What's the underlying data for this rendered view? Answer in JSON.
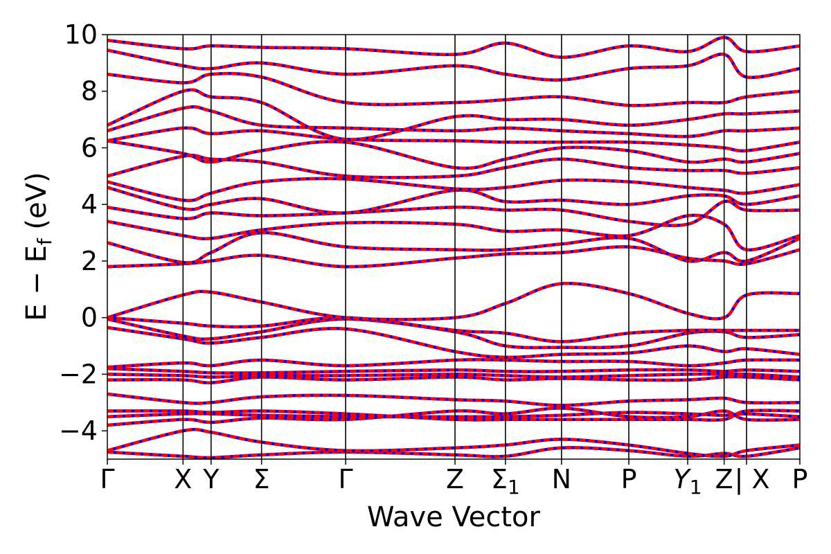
{
  "chart_data": {
    "type": "line",
    "title": "",
    "xlabel": "Wave Vector",
    "ylabel": "E − E",
    "ylabel_sub": "f",
    "ylabel_unit": " (eV)",
    "ylim": [
      -5,
      10
    ],
    "yticks": [
      "−4",
      "−2",
      "0",
      "2",
      "4",
      "6",
      "8",
      "10"
    ],
    "ytick_values": [
      -4,
      -2,
      0,
      2,
      4,
      6,
      8,
      10
    ],
    "xlim": [
      0,
      12.35
    ],
    "kpoints": [
      {
        "label": "Γ",
        "sub": "",
        "x": 0.0
      },
      {
        "label": "X",
        "sub": "",
        "x": 1.35
      },
      {
        "label": "Y",
        "sub": "",
        "x": 1.85
      },
      {
        "label": "Σ",
        "sub": "",
        "x": 2.75
      },
      {
        "label": "Γ",
        "sub": "",
        "x": 4.25
      },
      {
        "label": "Z",
        "sub": "",
        "x": 6.2
      },
      {
        "label": "Σ",
        "sub": "1",
        "x": 7.1
      },
      {
        "label": "N",
        "sub": "",
        "x": 8.1
      },
      {
        "label": "P",
        "sub": "",
        "x": 9.3
      },
      {
        "label": "Y",
        "sub": "1",
        "x": 10.35
      },
      {
        "label": "Z",
        "sub": "",
        "x": 11.0
      },
      {
        "label": "| X",
        "sub": "",
        "x": 11.4
      },
      {
        "label": "P",
        "sub": "",
        "x": 12.35
      }
    ],
    "colors": {
      "series_a": "#0000ff",
      "series_b": "#ff0000"
    },
    "bands": [
      {
        "e": [
          -4.75,
          -4.9,
          -4.95,
          -4.85,
          -4.75,
          -4.85,
          -4.9,
          -4.6,
          -4.7,
          -4.9,
          -4.8,
          -4.9,
          -4.6
        ]
      },
      {
        "e": [
          -4.7,
          -4.0,
          -4.05,
          -4.4,
          -4.7,
          -4.6,
          -4.5,
          -4.3,
          -4.5,
          -4.8,
          -4.9,
          -4.7,
          -4.5
        ]
      },
      {
        "e": [
          -3.8,
          -3.6,
          -3.7,
          -3.55,
          -3.6,
          -3.3,
          -3.4,
          -3.2,
          -3.5,
          -3.5,
          -3.3,
          -3.6,
          -3.6
        ]
      },
      {
        "e": [
          -3.5,
          -3.4,
          -3.4,
          -3.45,
          -3.5,
          -3.5,
          -3.5,
          -3.45,
          -3.35,
          -3.4,
          -3.45,
          -3.4,
          -3.5
        ]
      },
      {
        "e": [
          -3.3,
          -3.3,
          -3.35,
          -3.3,
          -3.4,
          -3.6,
          -3.6,
          -3.6,
          -3.6,
          -3.6,
          -3.6,
          -3.3,
          -3.3
        ]
      },
      {
        "e": [
          -2.7,
          -3.0,
          -3.0,
          -2.8,
          -2.75,
          -2.9,
          -2.95,
          -3.1,
          -2.95,
          -2.9,
          -2.85,
          -3.0,
          -3.0
        ]
      },
      {
        "e": [
          -2.2,
          -2.2,
          -2.3,
          -2.1,
          -2.2,
          -2.1,
          -2.2,
          -2.15,
          -2.2,
          -2.2,
          -2.1,
          -2.1,
          -2.2
        ]
      },
      {
        "e": [
          -2.0,
          -2.05,
          -2.1,
          -2.05,
          -2.05,
          -2.0,
          -2.05,
          -2.1,
          -2.05,
          -2.0,
          -2.0,
          -2.0,
          -2.1
        ]
      },
      {
        "e": [
          -1.8,
          -1.9,
          -1.95,
          -1.95,
          -1.9,
          -1.85,
          -1.9,
          -1.9,
          -1.85,
          -1.85,
          -1.9,
          -1.85,
          -1.9
        ]
      },
      {
        "e": [
          -1.75,
          -1.6,
          -1.7,
          -1.5,
          -1.7,
          -1.5,
          -1.5,
          -1.55,
          -1.55,
          -1.7,
          -1.6,
          -1.5,
          -1.5
        ]
      },
      {
        "e": [
          -0.35,
          -0.75,
          -0.9,
          -0.7,
          -0.4,
          -1.2,
          -1.4,
          -1.3,
          -1.25,
          -1.0,
          -1.2,
          -1.1,
          -1.3
        ]
      },
      {
        "e": [
          -0.05,
          -0.65,
          -0.75,
          -0.5,
          -0.05,
          -0.5,
          -1.0,
          -1.05,
          -1.0,
          -0.55,
          -0.5,
          -0.7,
          -0.6
        ]
      },
      {
        "e": [
          0.0,
          -0.2,
          -0.3,
          -0.3,
          0.0,
          -0.45,
          -0.55,
          -0.85,
          -0.55,
          -0.45,
          -0.45,
          -0.45,
          -0.45
        ]
      },
      {
        "e": [
          0.0,
          0.8,
          0.9,
          0.55,
          0.0,
          0.0,
          0.5,
          1.2,
          0.85,
          0.15,
          0.0,
          0.8,
          0.85
        ]
      },
      {
        "e": [
          1.8,
          1.9,
          2.0,
          2.2,
          1.8,
          2.1,
          2.25,
          2.3,
          2.5,
          2.1,
          2.0,
          1.9,
          2.4
        ]
      },
      {
        "e": [
          2.65,
          1.95,
          2.3,
          3.0,
          2.5,
          2.4,
          2.4,
          2.6,
          2.8,
          2.0,
          2.3,
          2.0,
          2.8
        ]
      },
      {
        "e": [
          3.4,
          2.9,
          2.8,
          3.1,
          3.35,
          3.3,
          3.05,
          3.1,
          2.9,
          3.6,
          3.3,
          2.4,
          2.9
        ]
      },
      {
        "e": [
          3.9,
          3.5,
          3.7,
          3.6,
          3.7,
          3.9,
          3.8,
          3.8,
          3.4,
          3.3,
          4.1,
          3.8,
          3.8
        ]
      },
      {
        "e": [
          4.6,
          3.85,
          4.0,
          4.2,
          3.7,
          4.5,
          4.1,
          4.15,
          4.0,
          4.3,
          4.3,
          4.0,
          4.3
        ]
      },
      {
        "e": [
          4.8,
          4.15,
          4.4,
          4.8,
          4.9,
          4.55,
          4.6,
          4.85,
          4.8,
          4.6,
          4.5,
          4.4,
          4.7
        ]
      },
      {
        "e": [
          5.0,
          5.7,
          5.6,
          5.5,
          5.0,
          5.0,
          5.3,
          5.6,
          5.3,
          5.2,
          5.2,
          5.1,
          5.3
        ]
      },
      {
        "e": [
          6.25,
          5.8,
          5.5,
          5.9,
          6.2,
          5.3,
          5.6,
          6.0,
          5.9,
          5.5,
          5.6,
          5.5,
          5.8
        ]
      },
      {
        "e": [
          6.25,
          6.7,
          6.5,
          6.6,
          6.3,
          6.25,
          6.2,
          6.2,
          6.2,
          6.1,
          6.0,
          5.9,
          6.2
        ]
      },
      {
        "e": [
          6.6,
          7.4,
          7.3,
          6.8,
          6.7,
          6.6,
          6.7,
          6.6,
          6.5,
          6.4,
          6.6,
          6.6,
          6.7
        ]
      },
      {
        "e": [
          6.8,
          8.0,
          7.8,
          7.6,
          6.3,
          7.1,
          7.0,
          7.0,
          6.8,
          7.0,
          7.2,
          7.2,
          7.3
        ]
      },
      {
        "e": [
          8.6,
          8.3,
          8.6,
          8.5,
          7.6,
          7.6,
          7.7,
          7.8,
          7.5,
          7.6,
          7.6,
          7.8,
          8.0
        ]
      },
      {
        "e": [
          9.45,
          8.9,
          8.8,
          9.0,
          8.6,
          8.9,
          8.6,
          8.4,
          8.8,
          8.9,
          9.3,
          8.5,
          8.8
        ]
      },
      {
        "e": [
          9.8,
          9.5,
          9.6,
          9.55,
          9.5,
          9.3,
          9.7,
          9.2,
          9.6,
          9.4,
          9.9,
          9.4,
          9.6
        ]
      }
    ]
  }
}
